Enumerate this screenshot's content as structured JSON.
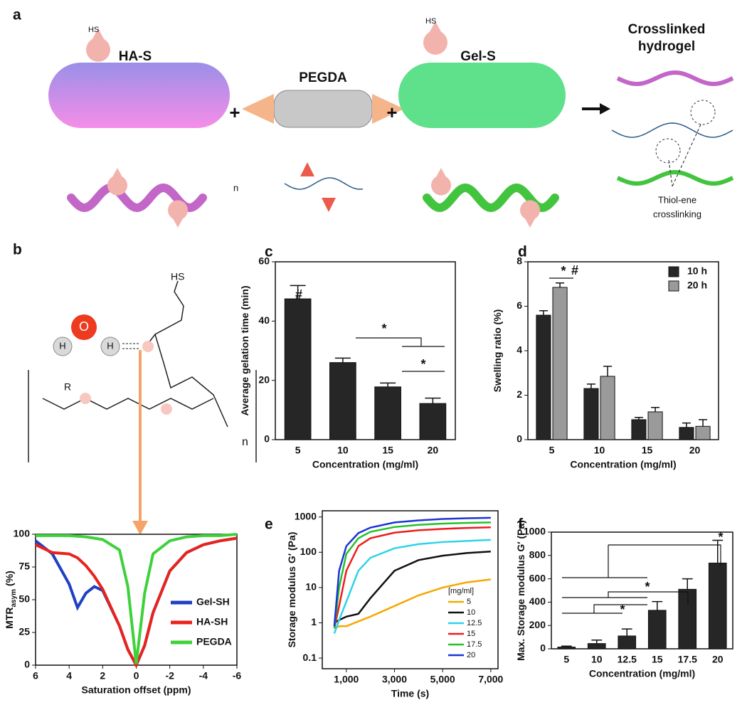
{
  "diagram": {
    "panel_labels": [
      "a",
      "b",
      "c",
      "d",
      "e",
      "f"
    ],
    "ha_s": "HA-S",
    "pegda": "PEGDA",
    "gel_s": "Gel-S",
    "crosslinked": [
      "Crosslinked",
      "hydrogel"
    ],
    "thiol": [
      "Thiol-ene",
      "crosslinking"
    ],
    "plus": "+",
    "atoms": [
      "O",
      "H",
      "H"
    ],
    "chem": [
      "HS",
      "R",
      "n",
      "n"
    ]
  },
  "chart_data": [
    {
      "type": "line",
      "xlabel": "Saturation offset (ppm)",
      "ylabel": "MTR",
      "ylabel_sub": "asym",
      "ylabel_unit": "(%)",
      "x": [
        6,
        5,
        4,
        3.5,
        3,
        2.5,
        2,
        1,
        0.5,
        0,
        -0.5,
        -1,
        -2,
        -3,
        -4,
        -5,
        -6
      ],
      "series": [
        {
          "name": "Gel-SH",
          "color": "#1f3fc4",
          "values": [
            95,
            85,
            62,
            44,
            55,
            60,
            57,
            30,
            12,
            0,
            15,
            40,
            72,
            86,
            92,
            95,
            97
          ]
        },
        {
          "name": "HA-SH",
          "color": "#e8231c",
          "values": [
            92,
            86,
            85,
            82,
            76,
            68,
            58,
            30,
            12,
            0,
            15,
            40,
            72,
            86,
            92,
            95,
            97
          ]
        },
        {
          "name": "PEGDA",
          "color": "#3ed13a",
          "values": [
            99,
            99,
            99,
            98.5,
            98,
            97,
            96,
            88,
            60,
            1,
            55,
            85,
            95,
            98,
            99,
            99,
            100
          ]
        }
      ],
      "xlim": [
        6,
        -6
      ],
      "xticks": [
        6,
        4,
        2,
        0,
        -2,
        -4,
        -6
      ],
      "ylim": [
        0,
        100
      ],
      "yticks": [
        0,
        25,
        50,
        75,
        100
      ],
      "legend": "lower right"
    },
    {
      "type": "bar",
      "xlabel": "Concentration (mg/ml)",
      "ylabel": "Average gelation time (min)",
      "categories": [
        "5",
        "10",
        "15",
        "20"
      ],
      "values": [
        47.5,
        26,
        17.8,
        12.2
      ],
      "errors": [
        4.5,
        1.5,
        1.3,
        1.8
      ],
      "color": "#262626",
      "ylim": [
        0,
        60
      ],
      "yticks": [
        0,
        20,
        40,
        60
      ],
      "annotations": [
        "#",
        "*",
        "*"
      ]
    },
    {
      "type": "bar",
      "xlabel": "Concentration (mg/ml)",
      "ylabel": "Swelling ratio (%)",
      "categories": [
        "5",
        "10",
        "15",
        "20"
      ],
      "series": [
        {
          "name": "10 h",
          "color": "#262626",
          "values": [
            5.6,
            2.3,
            0.9,
            0.55
          ],
          "errors": [
            0.2,
            0.2,
            0.1,
            0.2
          ]
        },
        {
          "name": "20 h",
          "color": "#9a9a9a",
          "values": [
            6.85,
            2.85,
            1.25,
            0.6
          ],
          "errors": [
            0.2,
            0.45,
            0.2,
            0.3
          ]
        }
      ],
      "ylim": [
        0,
        8
      ],
      "yticks": [
        0,
        2,
        4,
        6,
        8
      ],
      "legend": "upper right",
      "annotations": [
        "*",
        "#"
      ]
    },
    {
      "type": "line",
      "xlabel": "Time (s)",
      "ylabel": "Storage modulus G′ (Pa)",
      "log_y": true,
      "x": [
        500,
        700,
        1000,
        1500,
        2000,
        3000,
        4000,
        5000,
        6000,
        7000
      ],
      "series": [
        {
          "name": "5",
          "color": "#f5a800",
          "values": [
            0.7,
            0.8,
            0.8,
            1.1,
            1.5,
            3,
            6,
            10,
            14,
            17
          ]
        },
        {
          "name": "10",
          "color": "#111111",
          "values": [
            1,
            1.2,
            1.5,
            1.8,
            5,
            30,
            60,
            80,
            95,
            105
          ]
        },
        {
          "name": "12.5",
          "color": "#2ed3e8",
          "values": [
            0.5,
            1.2,
            4,
            30,
            70,
            130,
            170,
            195,
            210,
            225
          ]
        },
        {
          "name": "15",
          "color": "#ee1c1c",
          "values": [
            0.7,
            3,
            30,
            150,
            250,
            360,
            420,
            460,
            490,
            510
          ]
        },
        {
          "name": "17.5",
          "color": "#25c12a",
          "values": [
            0.7,
            10,
            90,
            250,
            380,
            520,
            600,
            650,
            680,
            700
          ]
        },
        {
          "name": "20",
          "color": "#1c33d6",
          "values": [
            0.8,
            30,
            150,
            350,
            500,
            700,
            800,
            880,
            920,
            950
          ]
        }
      ],
      "xlim": [
        0,
        7300
      ],
      "xticks": [
        {
          "value": 1000,
          "label": "1,000"
        },
        {
          "value": 3000,
          "label": "3,000"
        },
        {
          "value": 5000,
          "label": "5,000"
        },
        {
          "value": 7000,
          "label": "7,000"
        }
      ],
      "ylim": [
        0.05,
        1500
      ],
      "yticks": [
        0.1,
        1,
        10,
        100,
        1000
      ],
      "legend": "lower right",
      "legend_title": "[mg/ml]"
    },
    {
      "type": "bar",
      "xlabel": "Concentration (mg/ml)",
      "ylabel": "Max. Storage modulus G′ (Pa)",
      "categories": [
        "5",
        "10",
        "12.5",
        "15",
        "17.5",
        "20"
      ],
      "values": [
        15,
        45,
        110,
        330,
        510,
        735
      ],
      "errors": [
        8,
        30,
        60,
        75,
        90,
        195
      ],
      "color": "#262626",
      "ylim": [
        0,
        1000
      ],
      "yticks": [
        0,
        200,
        400,
        600,
        800,
        1000
      ],
      "annotations": [
        "*",
        "*",
        "*"
      ]
    }
  ]
}
